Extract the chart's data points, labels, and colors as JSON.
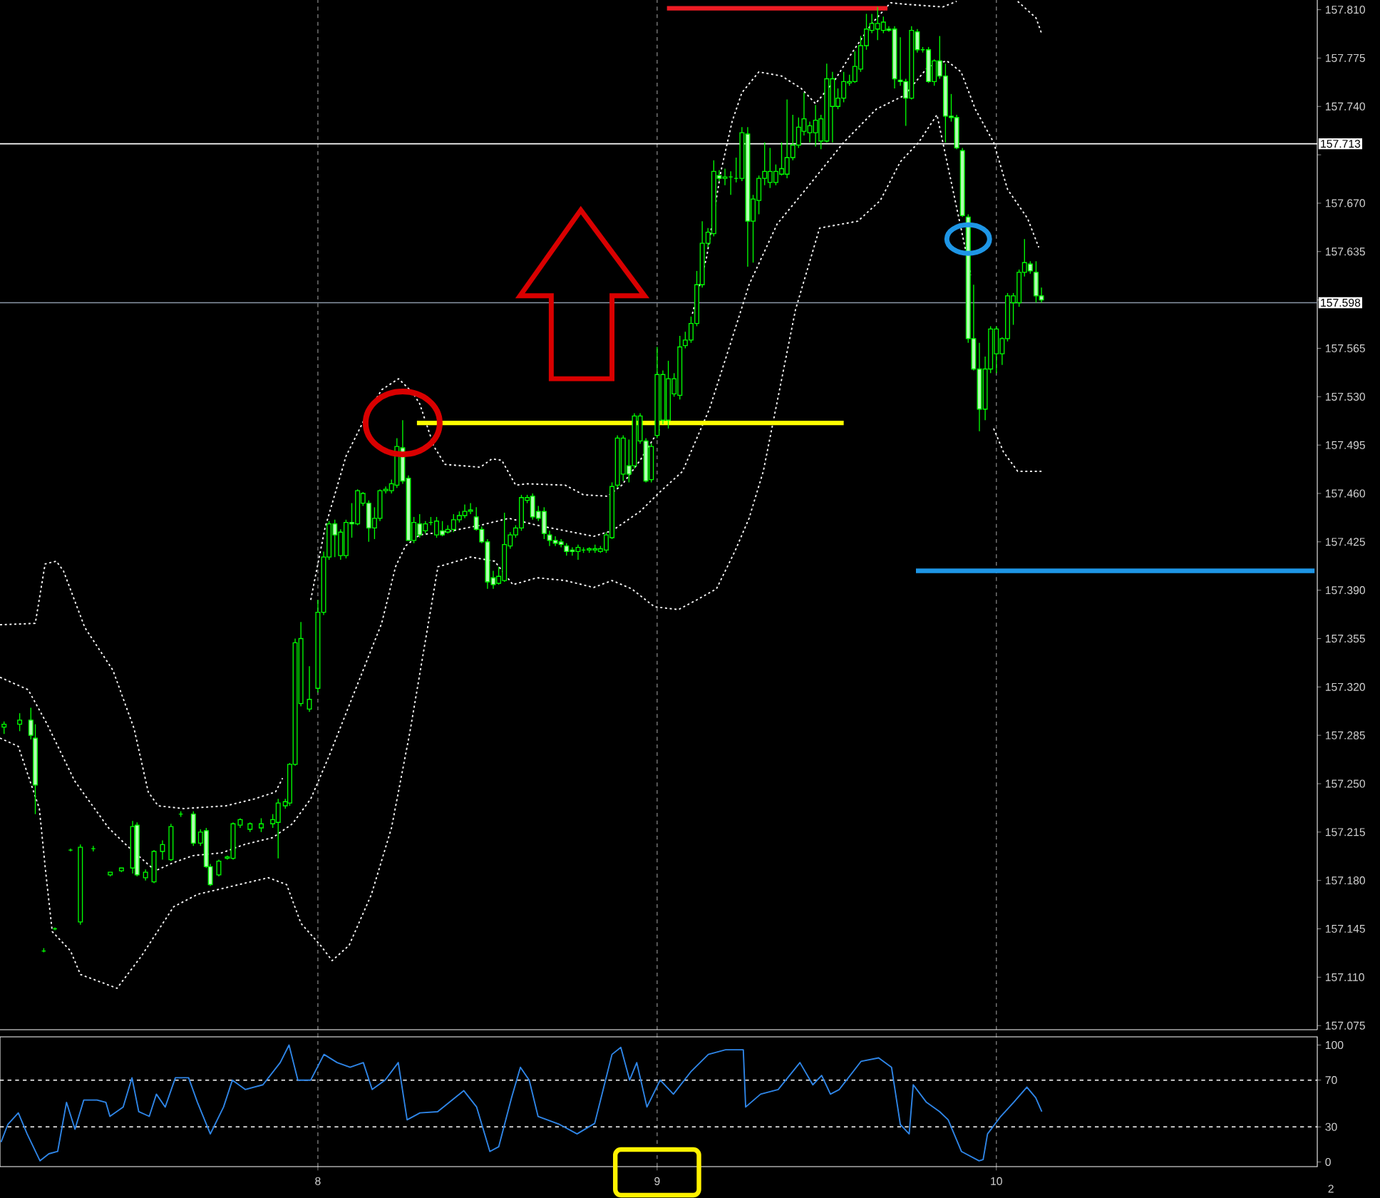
{
  "chart_data": [
    {
      "type": "candlestick",
      "color": "#00ff00",
      "xlim": [
        7.063,
        10.946
      ],
      "xticks": [
        8,
        9,
        10
      ],
      "ylim": [
        157.072,
        157.817
      ],
      "yticks": [
        157.075,
        {
          "value": 157.11,
          "label": "157.110"
        },
        157.145,
        {
          "value": 157.18,
          "label": "157.180"
        },
        157.215,
        {
          "value": 157.25,
          "label": "157.250"
        },
        157.285,
        {
          "value": 157.32,
          "label": "157.320"
        },
        157.355,
        {
          "value": 157.39,
          "label": "157.390"
        },
        157.425,
        {
          "value": 157.46,
          "label": "157.460"
        },
        157.495,
        {
          "value": 157.53,
          "label": "157.530"
        },
        157.565,
        {
          "value": 157.6,
          "label": null
        },
        157.635,
        {
          "value": 157.67,
          "label": "157.670"
        },
        {
          "value": 157.705,
          "label": null
        },
        {
          "value": 157.74,
          "label": "157.740"
        },
        157.775,
        {
          "value": 157.81,
          "label": "157.810"
        }
      ],
      "tick_labels": "y",
      "grid": "x",
      "x": [
        7.075,
        7.121,
        7.154,
        7.167,
        7.192,
        7.225,
        7.271,
        7.3,
        7.338,
        7.388,
        7.421,
        7.454,
        7.467,
        7.492,
        7.517,
        7.542,
        7.567,
        7.596,
        7.633,
        7.654,
        7.671,
        7.683,
        7.708,
        7.733,
        7.75,
        7.771,
        7.8,
        7.833,
        7.867,
        7.883,
        7.904,
        7.917,
        7.933,
        7.95,
        7.975,
        8.0,
        8.017,
        8.033,
        8.05,
        8.067,
        8.083,
        8.1,
        8.117,
        8.133,
        8.15,
        8.167,
        8.183,
        8.2,
        8.217,
        8.233,
        8.25,
        8.267,
        8.283,
        8.3,
        8.317,
        8.333,
        8.35,
        8.367,
        8.383,
        8.4,
        8.417,
        8.433,
        8.45,
        8.467,
        8.483,
        8.5,
        8.517,
        8.533,
        8.55,
        8.567,
        8.583,
        8.6,
        8.617,
        8.633,
        8.65,
        8.667,
        8.683,
        8.7,
        8.717,
        8.733,
        8.75,
        8.767,
        8.783,
        8.8,
        8.817,
        8.833,
        8.85,
        8.867,
        8.883,
        8.9,
        8.917,
        8.933,
        8.95,
        8.967,
        8.983,
        9.0,
        9.017,
        9.033,
        9.05,
        9.067,
        9.083,
        9.1,
        9.117,
        9.133,
        9.15,
        9.167,
        9.183,
        9.2,
        9.217,
        9.233,
        9.25,
        9.267,
        9.283,
        9.3,
        9.317,
        9.333,
        9.35,
        9.367,
        9.383,
        9.4,
        9.417,
        9.433,
        9.45,
        9.467,
        9.483,
        9.5,
        9.517,
        9.533,
        9.55,
        9.567,
        9.583,
        9.6,
        9.617,
        9.633,
        9.65,
        9.667,
        9.683,
        9.7,
        9.717,
        9.733,
        9.75,
        9.767,
        9.783,
        9.8,
        9.817,
        9.833,
        9.85,
        9.867,
        9.883,
        9.9,
        9.917,
        9.933,
        9.95,
        9.967,
        9.983,
        10.0,
        10.017,
        10.033,
        10.05,
        10.067,
        10.083,
        10.1,
        10.117,
        10.133
      ],
      "ohlc": [
        [
          157.291,
          157.295,
          157.286,
          157.293
        ],
        [
          157.293,
          157.301,
          157.288,
          157.296
        ],
        [
          157.296,
          157.305,
          157.282,
          157.285
        ],
        [
          157.283,
          157.293,
          157.228,
          157.249
        ],
        [
          157.129,
          157.131,
          157.128,
          157.129
        ],
        [
          157.145,
          157.146,
          157.144,
          157.145
        ],
        [
          157.202,
          157.203,
          157.201,
          157.202
        ],
        [
          157.15,
          157.206,
          157.148,
          157.204
        ],
        [
          157.203,
          157.205,
          157.201,
          157.203
        ],
        [
          157.184,
          157.186,
          157.183,
          157.186
        ],
        [
          157.187,
          157.189,
          157.186,
          157.189
        ],
        [
          157.189,
          157.223,
          157.185,
          157.219
        ],
        [
          157.22,
          157.222,
          157.183,
          157.184
        ],
        [
          157.182,
          157.188,
          157.18,
          157.186
        ],
        [
          157.179,
          157.202,
          157.178,
          157.201
        ],
        [
          157.201,
          157.209,
          157.195,
          157.206
        ],
        [
          157.195,
          157.221,
          157.194,
          157.219
        ],
        [
          157.228,
          157.23,
          157.226,
          157.228
        ],
        [
          157.228,
          157.23,
          157.205,
          157.207
        ],
        [
          157.207,
          157.217,
          157.205,
          157.215
        ],
        [
          157.216,
          157.218,
          157.189,
          157.19
        ],
        [
          157.19,
          157.192,
          157.176,
          157.177
        ],
        [
          157.184,
          157.195,
          157.183,
          157.194
        ],
        [
          157.196,
          157.198,
          157.195,
          157.197
        ],
        [
          157.196,
          157.222,
          157.195,
          157.221
        ],
        [
          157.22,
          157.225,
          157.218,
          157.224
        ],
        [
          157.217,
          157.222,
          157.215,
          157.221
        ],
        [
          157.218,
          157.225,
          157.215,
          157.221
        ],
        [
          157.221,
          157.228,
          157.218,
          157.224
        ],
        [
          157.222,
          157.239,
          157.196,
          157.236
        ],
        [
          157.234,
          157.239,
          157.232,
          157.237
        ],
        [
          157.236,
          157.265,
          157.234,
          157.264
        ],
        [
          157.264,
          157.355,
          157.263,
          157.352
        ],
        [
          157.308,
          157.367,
          157.306,
          157.355
        ],
        [
          157.304,
          157.335,
          157.302,
          157.311
        ],
        [
          157.319,
          157.383,
          157.316,
          157.374
        ],
        [
          157.374,
          157.418,
          157.372,
          157.414
        ],
        [
          157.414,
          157.44,
          157.412,
          157.438
        ],
        [
          157.438,
          157.441,
          157.414,
          157.43
        ],
        [
          157.415,
          157.434,
          157.412,
          157.432
        ],
        [
          157.415,
          157.441,
          157.413,
          157.439
        ],
        [
          157.439,
          157.453,
          157.428,
          157.438
        ],
        [
          157.438,
          157.463,
          157.437,
          157.462
        ],
        [
          157.453,
          157.461,
          157.451,
          157.46
        ],
        [
          157.453,
          157.455,
          157.425,
          157.435
        ],
        [
          157.435,
          157.45,
          157.427,
          157.442
        ],
        [
          157.442,
          157.463,
          157.44,
          157.462
        ],
        [
          157.462,
          157.465,
          157.46,
          157.463
        ],
        [
          157.462,
          157.47,
          157.46,
          157.467
        ],
        [
          157.466,
          157.5,
          157.464,
          157.494
        ],
        [
          157.493,
          157.513,
          157.467,
          157.469
        ],
        [
          157.471,
          157.473,
          157.426,
          157.426
        ],
        [
          157.426,
          157.443,
          157.424,
          157.439
        ],
        [
          157.438,
          157.445,
          157.428,
          157.43
        ],
        [
          157.433,
          157.44,
          157.431,
          157.438
        ],
        [
          157.439,
          157.443,
          157.437,
          157.439
        ],
        [
          157.43,
          157.443,
          157.428,
          157.44
        ],
        [
          157.433,
          157.44,
          157.429,
          157.43
        ],
        [
          157.432,
          157.437,
          157.431,
          157.434
        ],
        [
          157.434,
          157.445,
          157.432,
          157.441
        ],
        [
          157.441,
          157.447,
          157.439,
          157.444
        ],
        [
          157.444,
          157.452,
          157.442,
          157.447
        ],
        [
          157.447,
          157.453,
          157.445,
          157.448
        ],
        [
          157.443,
          157.45,
          157.433,
          157.434
        ],
        [
          157.434,
          157.436,
          157.424,
          157.425
        ],
        [
          157.425,
          157.427,
          157.391,
          157.396
        ],
        [
          157.399,
          157.404,
          157.391,
          157.394
        ],
        [
          157.395,
          157.407,
          157.394,
          157.4
        ],
        [
          157.397,
          157.446,
          157.396,
          157.423
        ],
        [
          157.422,
          157.432,
          157.42,
          157.43
        ],
        [
          157.43,
          157.437,
          157.428,
          157.435
        ],
        [
          157.435,
          157.459,
          157.433,
          157.457
        ],
        [
          157.455,
          157.459,
          157.453,
          157.457
        ],
        [
          157.458,
          157.46,
          157.441,
          157.443
        ],
        [
          157.447,
          157.451,
          157.44,
          157.442
        ],
        [
          157.447,
          157.45,
          157.427,
          157.431
        ],
        [
          157.43,
          157.433,
          157.422,
          157.426
        ],
        [
          157.426,
          157.429,
          157.422,
          157.424
        ],
        [
          157.425,
          157.427,
          157.421,
          157.423
        ],
        [
          157.422,
          157.424,
          157.415,
          157.418
        ],
        [
          157.419,
          157.421,
          157.415,
          157.418
        ],
        [
          157.418,
          157.423,
          157.412,
          157.421
        ],
        [
          157.419,
          157.421,
          157.417,
          157.419
        ],
        [
          157.419,
          157.421,
          157.417,
          157.42
        ],
        [
          157.419,
          157.423,
          157.417,
          157.42
        ],
        [
          157.418,
          157.422,
          157.417,
          157.42
        ],
        [
          157.419,
          157.432,
          157.417,
          157.43
        ],
        [
          157.428,
          157.468,
          157.427,
          157.465
        ],
        [
          157.466,
          157.502,
          157.464,
          157.5
        ],
        [
          157.474,
          157.502,
          157.469,
          157.5
        ],
        [
          157.48,
          157.499,
          157.468,
          157.474
        ],
        [
          157.48,
          157.518,
          157.478,
          157.516
        ],
        [
          157.498,
          157.518,
          157.496,
          157.516
        ],
        [
          157.498,
          157.5,
          157.468,
          157.469
        ],
        [
          157.47,
          157.496,
          157.468,
          157.494
        ],
        [
          157.502,
          157.566,
          157.5,
          157.546
        ],
        [
          157.513,
          157.549,
          157.51,
          157.546
        ],
        [
          157.513,
          157.556,
          157.507,
          157.543
        ],
        [
          157.532,
          157.547,
          157.53,
          157.543
        ],
        [
          157.531,
          157.574,
          157.528,
          157.566
        ],
        [
          157.567,
          157.577,
          157.565,
          157.571
        ],
        [
          157.571,
          157.588,
          157.569,
          157.583
        ],
        [
          157.583,
          157.621,
          157.581,
          157.611
        ],
        [
          157.611,
          157.657,
          157.609,
          157.641
        ],
        [
          157.641,
          157.652,
          157.638,
          157.649
        ],
        [
          157.648,
          157.701,
          157.646,
          157.693
        ],
        [
          157.69,
          157.694,
          157.686,
          157.688
        ],
        [
          157.688,
          157.695,
          157.683,
          157.689
        ],
        [
          157.689,
          157.693,
          157.676,
          157.689
        ],
        [
          157.688,
          157.703,
          157.685,
          157.688
        ],
        [
          157.688,
          157.725,
          157.686,
          157.721
        ],
        [
          157.72,
          157.725,
          157.624,
          157.657
        ],
        [
          157.657,
          157.676,
          157.627,
          157.673
        ],
        [
          157.672,
          157.69,
          157.662,
          157.688
        ],
        [
          157.688,
          157.714,
          157.683,
          157.693
        ],
        [
          157.685,
          157.71,
          157.681,
          157.693
        ],
        [
          157.685,
          157.698,
          157.683,
          157.693
        ],
        [
          157.691,
          157.714,
          157.69,
          157.695
        ],
        [
          157.691,
          157.745,
          157.688,
          157.703
        ],
        [
          157.703,
          157.734,
          157.701,
          157.712
        ],
        [
          157.712,
          157.732,
          157.71,
          157.725
        ],
        [
          157.722,
          157.75,
          157.719,
          157.731
        ],
        [
          157.721,
          157.729,
          157.714,
          157.726
        ],
        [
          157.721,
          157.741,
          157.711,
          157.73
        ],
        [
          157.715,
          157.734,
          157.709,
          157.731
        ],
        [
          157.715,
          157.771,
          157.714,
          157.76
        ],
        [
          157.74,
          157.765,
          157.714,
          157.76
        ],
        [
          157.74,
          157.753,
          157.738,
          157.746
        ],
        [
          157.746,
          157.765,
          157.743,
          157.758
        ],
        [
          157.757,
          157.763,
          157.755,
          157.758
        ],
        [
          157.758,
          157.78,
          157.757,
          157.769
        ],
        [
          157.767,
          157.791,
          157.765,
          157.784
        ],
        [
          157.784,
          157.807,
          157.781,
          157.796
        ],
        [
          157.795,
          157.807,
          157.793,
          157.8
        ],
        [
          157.796,
          157.812,
          157.788,
          157.8
        ],
        [
          157.795,
          157.805,
          157.793,
          157.801
        ],
        [
          157.796,
          157.798,
          157.794,
          157.795
        ],
        [
          157.796,
          157.798,
          157.753,
          157.76
        ],
        [
          157.759,
          157.79,
          157.755,
          157.758
        ],
        [
          157.758,
          157.76,
          157.726,
          157.746
        ],
        [
          157.746,
          157.798,
          157.745,
          157.795
        ],
        [
          157.794,
          157.796,
          157.779,
          157.781
        ],
        [
          157.781,
          157.783,
          157.779,
          157.781
        ],
        [
          157.781,
          157.783,
          157.757,
          157.758
        ],
        [
          157.758,
          157.774,
          157.755,
          157.773
        ],
        [
          157.773,
          157.791,
          157.76,
          157.762
        ],
        [
          157.762,
          157.771,
          157.714,
          157.733
        ],
        [
          157.733,
          157.749,
          157.729,
          157.732
        ],
        [
          157.732,
          157.734,
          157.709,
          157.71
        ],
        [
          157.708,
          157.71,
          157.66,
          157.661
        ],
        [
          157.66,
          157.662,
          157.569,
          157.572
        ],
        [
          157.572,
          157.611,
          157.549,
          157.55
        ],
        [
          157.55,
          157.569,
          157.505,
          157.521
        ],
        [
          157.521,
          157.559,
          157.513,
          157.55
        ],
        [
          157.55,
          157.581,
          157.547,
          157.579
        ],
        [
          157.561,
          157.581,
          157.547,
          157.579
        ],
        [
          157.561,
          157.573,
          157.553,
          157.572
        ],
        [
          157.572,
          157.605,
          157.57,
          157.603
        ],
        [
          157.598,
          157.605,
          157.582,
          157.603
        ],
        [
          157.598,
          157.622,
          157.595,
          157.62
        ],
        [
          157.62,
          157.644,
          157.617,
          157.627
        ],
        [
          157.626,
          157.628,
          157.619,
          157.621
        ],
        [
          157.62,
          157.628,
          157.598,
          157.603
        ],
        [
          157.603,
          157.609,
          157.598,
          157.6
        ]
      ],
      "series": [
        {
          "type": "line",
          "color": "#ffffff",
          "line_style": "dotted",
          "x": [
            7.063,
            7.167,
            7.196,
            7.229,
            7.25,
            7.313,
            7.396,
            7.458,
            7.5,
            7.529,
            7.604,
            7.729,
            7.813,
            7.875,
            7.896,
            7.938,
            7.979,
            8.021,
            8.083,
            8.146,
            8.188,
            8.238,
            8.279,
            8.3,
            8.342,
            8.375,
            8.479,
            8.513,
            8.542,
            8.583,
            8.617,
            8.729,
            8.783,
            8.854,
            8.896,
            8.95,
            9.008,
            9.063,
            9.104,
            9.146,
            9.188,
            9.221,
            9.25,
            9.3,
            9.367,
            9.425,
            9.467,
            9.521,
            9.575,
            9.633,
            9.688,
            9.729,
            9.842,
            9.883,
            9.979,
            10.063,
            10.117,
            10.133
          ],
          "values": [
            157.365,
            157.366,
            157.409,
            157.411,
            157.404,
            157.363,
            157.332,
            157.29,
            157.244,
            157.234,
            157.232,
            157.234,
            157.239,
            157.244,
            157.254,
            null,
            157.383,
            157.435,
            157.487,
            157.518,
            157.535,
            157.543,
            157.533,
            157.525,
            157.494,
            157.481,
            157.479,
            157.485,
            157.484,
            157.466,
            157.467,
            157.466,
            157.459,
            157.458,
            157.466,
            157.484,
            157.507,
            null,
            157.59,
            157.631,
            157.693,
            157.729,
            157.75,
            157.765,
            157.762,
            157.753,
            157.742,
            157.758,
            157.779,
            157.8,
            157.815,
            157.814,
            157.812,
            157.816,
            null,
            157.816,
            157.804,
            157.793
          ]
        },
        {
          "type": "line",
          "color": "#ffffff",
          "line_style": "dotted",
          "x": [
            7.063,
            7.146,
            7.2,
            7.283,
            7.383,
            7.438,
            7.521,
            7.575,
            7.633,
            7.717,
            7.783,
            7.867,
            7.925,
            7.979,
            8.033,
            8.117,
            8.188,
            8.229,
            8.258,
            8.3,
            8.396,
            8.479,
            8.563,
            8.646,
            8.729,
            8.813,
            8.867,
            8.95,
            9.008,
            9.075,
            9.154,
            9.217,
            9.271,
            9.354,
            9.438,
            9.55,
            9.646,
            9.729,
            9.8,
            9.854,
            9.896,
            9.938,
            9.992,
            10.033,
            10.092,
            10.125
          ],
          "values": [
            157.327,
            157.318,
            157.294,
            157.252,
            157.218,
            157.205,
            157.187,
            157.193,
            157.198,
            157.2,
            157.206,
            157.211,
            157.221,
            157.239,
            157.27,
            157.322,
            157.366,
            157.407,
            157.422,
            157.43,
            157.433,
            157.437,
            157.442,
            157.437,
            157.433,
            157.429,
            157.433,
            157.447,
            157.461,
            157.476,
            157.521,
            157.569,
            157.611,
            157.655,
            157.68,
            157.714,
            157.738,
            157.748,
            157.769,
            157.773,
            157.765,
            157.738,
            157.714,
            157.68,
            157.659,
            157.638
          ]
        },
        {
          "type": "line",
          "color": "#ffffff",
          "line_style": "dotted",
          "x": [
            7.063,
            7.117,
            7.179,
            7.196,
            7.217,
            7.271,
            7.3,
            7.408,
            7.479,
            7.575,
            7.646,
            7.854,
            7.908,
            7.95,
            8.008,
            8.042,
            8.092,
            8.158,
            8.217,
            8.271,
            8.354,
            8.383,
            8.45,
            8.521,
            8.575,
            8.646,
            8.729,
            8.813,
            8.867,
            8.925,
            8.992,
            9.063,
            9.117,
            9.175,
            9.229,
            9.271,
            9.313,
            9.408,
            9.479,
            9.592,
            9.658,
            9.717,
            9.771,
            9.825,
            9.925,
            9.938,
            9.967,
            9.992,
            10.021,
            10.063,
            10.133
          ],
          "values": [
            157.283,
            157.277,
            157.232,
            157.19,
            157.143,
            157.129,
            157.112,
            157.102,
            157.125,
            157.161,
            157.17,
            157.182,
            157.177,
            157.149,
            157.133,
            157.122,
            157.133,
            157.17,
            157.218,
            157.287,
            157.407,
            157.409,
            157.414,
            157.411,
            157.394,
            157.399,
            157.397,
            157.392,
            157.397,
            157.391,
            157.378,
            157.376,
            157.383,
            157.391,
            157.418,
            157.442,
            157.476,
            157.593,
            157.652,
            157.657,
            157.672,
            157.7,
            157.714,
            157.734,
            157.618,
            null,
            null,
            157.507,
            157.49,
            157.476,
            157.476
          ]
        },
        {
          "type": "line",
          "color": "#ed1c24",
          "line_style": "solid",
          "x": [
            9.029,
            9.679
          ],
          "values": [
            157.811,
            157.811
          ]
        },
        {
          "type": "line",
          "color": "#ffff00",
          "line_style": "solid",
          "x": [
            8.292,
            9.55
          ],
          "values": [
            157.511,
            157.511
          ]
        },
        {
          "type": "line",
          "color": "#1e96e6",
          "line_style": "solid",
          "x": [
            9.763,
            10.938
          ],
          "values": [
            157.404,
            157.404
          ]
        }
      ],
      "ref_lines": [
        {
          "axis": "y",
          "value": 157.713,
          "label": "157.713",
          "color": "#ffffff",
          "line_style": "solid"
        },
        {
          "axis": "y",
          "value": 157.598,
          "label": "157.598",
          "color": "#8a97a6",
          "line_style": "solid"
        }
      ]
    },
    {
      "type": "line",
      "xlim": [
        7.063,
        10.946
      ],
      "xticks": [
        8,
        9,
        10
      ],
      "ylim": [
        -4,
        107
      ],
      "yticks": [
        0,
        30,
        70,
        100
      ],
      "grid": "x",
      "x": [
        7.066,
        7.086,
        7.117,
        7.143,
        7.181,
        7.207,
        7.233,
        7.259,
        7.284,
        7.31,
        7.349,
        7.375,
        7.387,
        7.426,
        7.452,
        7.472,
        7.503,
        7.524,
        7.55,
        7.58,
        7.619,
        7.645,
        7.683,
        7.722,
        7.748,
        7.786,
        7.838,
        7.889,
        7.915,
        7.941,
        7.979,
        8.018,
        8.057,
        8.095,
        8.134,
        8.16,
        8.198,
        8.237,
        8.263,
        8.301,
        8.353,
        8.43,
        8.468,
        8.507,
        8.533,
        8.571,
        8.597,
        8.623,
        8.649,
        8.713,
        8.764,
        8.816,
        8.867,
        8.893,
        8.919,
        8.94,
        8.97,
        9.009,
        9.048,
        9.099,
        9.151,
        9.202,
        9.254,
        9.261,
        9.305,
        9.357,
        9.421,
        9.459,
        9.485,
        9.511,
        9.537,
        9.601,
        9.653,
        9.691,
        9.717,
        9.743,
        9.755,
        9.794,
        9.833,
        9.858,
        9.897,
        9.949,
        9.961,
        9.974,
        10.013,
        10.051,
        10.09,
        10.116,
        10.134
      ],
      "series": [
        {
          "color": "#2f86e8",
          "values": [
            17,
            32,
            42,
            24,
            1,
            7,
            9,
            51,
            28,
            53,
            53,
            51,
            39,
            47,
            72,
            43,
            39,
            58,
            47,
            72,
            72,
            51,
            24,
            47,
            70,
            62,
            66,
            85,
            100,
            70,
            70,
            92,
            85,
            81,
            85,
            62,
            70,
            85,
            36,
            42,
            43,
            61,
            47,
            9,
            13,
            55,
            81,
            70,
            39,
            32,
            24,
            33,
            92,
            98,
            70,
            85,
            47,
            70,
            58,
            77,
            92,
            96,
            96,
            47,
            58,
            62,
            85,
            66,
            74,
            58,
            62,
            86,
            89,
            81,
            32,
            24,
            66,
            51,
            43,
            36,
            9,
            1,
            2,
            24,
            39,
            51,
            64,
            55,
            43
          ]
        }
      ],
      "ref_lines": [
        {
          "axis": "y",
          "value": 30,
          "color": "#ffffff",
          "line_style": "dashed"
        },
        {
          "axis": "y",
          "value": 70,
          "color": "#ffffff",
          "line_style": "dashed"
        }
      ],
      "annotations": [
        "2"
      ]
    }
  ]
}
